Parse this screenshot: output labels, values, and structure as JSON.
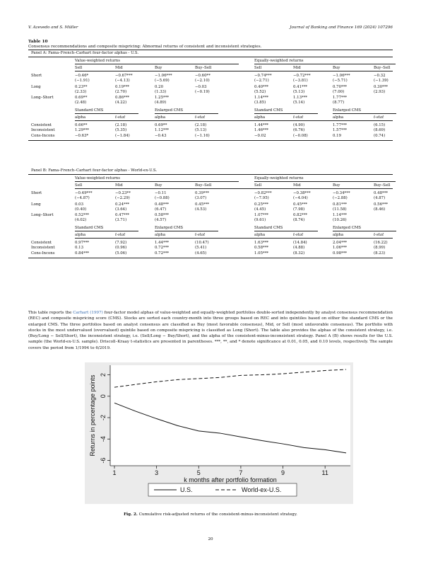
{
  "header": {
    "left": "V. Azevedo and S. Müller",
    "right": "Journal of Banking and Finance 169 (2024) 107296"
  },
  "table": {
    "number": "Table 10",
    "caption": "Consensus recommendations and composite mispricing: Abnormal returns of consistent and inconsistent strategies.",
    "panels": [
      {
        "label": "Panel A: Fama–French–Carhart four-factor alphas - U.S.",
        "group_vw": "Value-weighted returns",
        "group_ew": "Equally-weighted returns",
        "cols": [
          "Sell",
          "Mid",
          "Buy",
          "Buy–Sell",
          "Sell",
          "Mid",
          "Buy",
          "Buy–Sell"
        ],
        "rows": [
          {
            "label": "Short",
            "v": [
              "−0.46*",
              "−0.67***",
              "−1.06***",
              "−0.60**",
              "−0.74***",
              "−0.72***",
              "−1.06***",
              "−0.32"
            ],
            "t": [
              "(−1.91)",
              "(−4.13)",
              "(−5.69)",
              "(−2.10)",
              "(−2.71)",
              "(−3.81)",
              "(−5.71)",
              "(−1.39)"
            ]
          },
          {
            "label": "Long",
            "v": [
              "0.23**",
              "0.19***",
              "0.20",
              "−0.03",
              "0.40***",
              "0.41***",
              "0.70***",
              "0.30***"
            ],
            "t": [
              "(2.33)",
              "(2.70)",
              "(1.33)",
              "(−0.19)",
              "(5.52)",
              "(5.13)",
              "(7.00)",
              "(2.93)"
            ]
          },
          {
            "label": "Long–Short",
            "v": [
              "0.69**",
              "0.86***",
              "1.25***",
              "",
              "1.14***",
              "1.13***",
              "1.77***",
              ""
            ],
            "t": [
              "(2.48)",
              "(4.22)",
              "(4.89)",
              "",
              "(3.85)",
              "(5.14)",
              "(8.77)",
              ""
            ]
          }
        ],
        "sub_groups": [
          "Standard CMS",
          "Enlarged CMS",
          "Standard CMS",
          "Enlarged CMS"
        ],
        "sub_cols": [
          "alpha",
          "t-stat",
          "alpha",
          "t-stat",
          "alpha",
          "t-stat",
          "alpha",
          "t-stat"
        ],
        "sub_rows": [
          {
            "label": "Consistent",
            "v": [
              "0.66**",
              "(2.18)",
              "0.69**",
              "(2.18)",
              "1.44***",
              "(4.90)",
              "1.77***",
              "(6.15)"
            ]
          },
          {
            "label": "Inconsistent",
            "v": [
              "1.29***",
              "(5.35)",
              "1.12***",
              "(5.13)",
              "1.46***",
              "(6.76)",
              "1.57***",
              "(8.69)"
            ]
          },
          {
            "label": "Cons-Incons",
            "v": [
              "−0.63*",
              "(−1.84)",
              "−0.43",
              "(−1.16)",
              "−0.02",
              "(−0.08)",
              "0.19",
              "(0.74)"
            ]
          }
        ]
      },
      {
        "label": "Panel B: Fama–French–Carhart four-factor alphas - World-ex-U.S.",
        "group_vw": "Value-weighted returns",
        "group_ew": "Equally-weighted returns",
        "cols": [
          "Sell",
          "Mid",
          "Buy",
          "Buy–Sell",
          "Sell",
          "Mid",
          "Buy",
          "Buy–Sell"
        ],
        "rows": [
          {
            "label": "Short",
            "v": [
              "−0.49***",
              "−0.23**",
              "−0.11",
              "0.39***",
              "−0.82***",
              "−0.38***",
              "−0.34***",
              "0.48***"
            ],
            "t": [
              "(−4.87)",
              "(−2.29)",
              "(−0.88)",
              "(3.07)",
              "(−7.95)",
              "(−4.04)",
              "(−2.88)",
              "(4.87)"
            ]
          },
          {
            "label": "Long",
            "v": [
              "0.03",
              "0.24***",
              "0.48***",
              "0.45***",
              "0.25***",
              "0.45***",
              "0.81***",
              "0.56***"
            ],
            "t": [
              "(0.40)",
              "(3.64)",
              "(6.47)",
              "(4.53)",
              "(4.45)",
              "(7.98)",
              "(11.58)",
              "(8.46)"
            ]
          },
          {
            "label": "Long–Short",
            "v": [
              "0.52***",
              "0.47***",
              "0.58***",
              "",
              "1.07***",
              "0.82***",
              "1.14***",
              ""
            ],
            "t": [
              "(4.02)",
              "(3.71)",
              "(4.57)",
              "",
              "(9.61)",
              "(8.74)",
              "(10.26)",
              ""
            ]
          }
        ],
        "sub_groups": [
          "Standard CMS",
          "Enlarged CMS",
          "Standard CMS",
          "Enlarged CMS"
        ],
        "sub_cols": [
          "alpha",
          "t-stat",
          "alpha",
          "t-stat",
          "alpha",
          "t-stat",
          "alpha",
          "t-stat"
        ],
        "sub_rows": [
          {
            "label": "Consistent",
            "v": [
              "0.97***",
              "(7.92)",
              "1.44***",
              "(10.47)",
              "1.63***",
              "(14.84)",
              "2.04***",
              "(16.22)"
            ]
          },
          {
            "label": "Inconsistent",
            "v": [
              "0.13",
              "(0.96)",
              "0.72***",
              "(5.41)",
              "0.58***",
              "(4.88)",
              "1.06***",
              "(8.99)"
            ]
          },
          {
            "label": "Cons-Incons",
            "v": [
              "0.84***",
              "(5.06)",
              "0.72***",
              "(4.65)",
              "1.05***",
              "(8.32)",
              "0.98***",
              "(8.23)"
            ]
          }
        ]
      }
    ]
  },
  "note": {
    "p1": "This table reports the ",
    "link": "Carhart (1997)",
    "p2": " four-factor model alphas of value-weighted and equally-weighted portfolios double-sorted independently by analyst consensus recommendation (REC) and composite mispricing score (CMS). Stocks are sorted each country-month into three groups based on REC and into quintiles based on either the standard CMS or the enlarged CMS. The three portfolios based on analyst consensus are classified as Buy (most favorable consensus), Mid, or Sell (most unfavorable consensus). The portfolio with stocks in the most undervalued (overvalued) quintile based on composite mispricing is classified as Long (Short). The table also provides the alphas of the consistent strategy, i.e. (Buy/Long − Sell/Short), the inconsistent strategy, i.e. (Sell/Long − Buy/Short), and the alpha of the consistent-minus-inconsistent strategy. Panel A (B) shows results for the U.S. sample (the World-ex-U.S. sample). Driscoll–Kraay t-statistics are presented in parentheses. ***, **, and * denote significance at 0.01, 0.05, and 0.10 levels, respectively. The sample covers the period from 1/1994 to 6/2019."
  },
  "chart_data": {
    "type": "line",
    "x": [
      1,
      2,
      3,
      4,
      5,
      6,
      7,
      8,
      9,
      10,
      11,
      12
    ],
    "series": [
      {
        "name": "U.S.",
        "style": "solid",
        "values": [
          -0.63,
          -1.4,
          -2.1,
          -2.75,
          -3.25,
          -3.45,
          -3.8,
          -4.15,
          -4.45,
          -4.8,
          -5.0,
          -5.3
        ]
      },
      {
        "name": "World-ex-U.S.",
        "style": "dashed",
        "values": [
          0.84,
          1.1,
          1.35,
          1.55,
          1.65,
          1.75,
          1.95,
          2.0,
          2.1,
          2.25,
          2.4,
          2.5
        ]
      }
    ],
    "xlabel": "k months after portfolio formation",
    "ylabel": "Returns in percentage points",
    "xticks": [
      1,
      3,
      5,
      7,
      9,
      11
    ],
    "yticks": [
      2,
      0,
      -2,
      -4,
      -6
    ],
    "xlim": [
      1,
      12
    ],
    "ylim": [
      -6.1,
      2.5
    ],
    "grid": false,
    "legend": "bottom"
  },
  "figure_caption": {
    "label": "Fig. 2.",
    "text": " Cumulative risk-adjusted returns of the consistent-minus-inconsistent strategy."
  },
  "page_number": "20"
}
